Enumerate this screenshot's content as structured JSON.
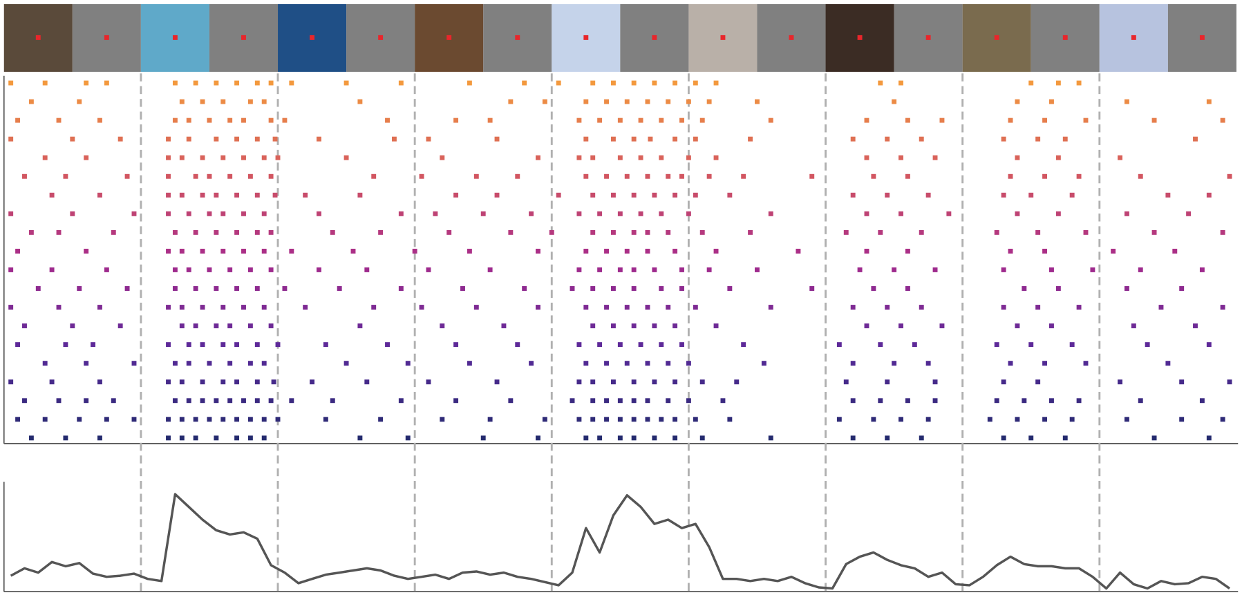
{
  "chart_data": [
    {
      "type": "raster",
      "xlim": [
        0,
        9
      ],
      "boundaries": [
        1,
        2,
        3,
        4,
        5,
        6,
        7,
        8
      ],
      "colormap": [
        "#f3993e",
        "#d4585f",
        "#a62a8c",
        "#5a2a9a",
        "#242a6e"
      ],
      "trials": [
        [
          0.05,
          0.3,
          0.6,
          0.75,
          1.25,
          1.4,
          1.55,
          1.7,
          1.85,
          1.95,
          2.1,
          2.5,
          2.9,
          3.4,
          3.8,
          4.05,
          4.3,
          4.45,
          4.6,
          4.75,
          4.9,
          5.05,
          5.2,
          6.4,
          6.55,
          7.5,
          7.7,
          7.85
        ],
        [
          0.2,
          0.55,
          1.3,
          1.45,
          1.6,
          1.8,
          1.9,
          2.6,
          3.7,
          3.95,
          4.25,
          4.4,
          4.55,
          4.7,
          4.85,
          5.0,
          5.15,
          5.5,
          6.5,
          7.4,
          7.65,
          8.2,
          8.8
        ],
        [
          0.1,
          0.4,
          0.7,
          1.25,
          1.35,
          1.5,
          1.65,
          1.75,
          1.95,
          2.05,
          2.8,
          3.3,
          3.55,
          4.2,
          4.35,
          4.5,
          4.65,
          4.8,
          4.95,
          5.1,
          5.6,
          6.3,
          6.6,
          6.85,
          7.35,
          7.6,
          7.9,
          8.4,
          8.9
        ],
        [
          0.05,
          0.5,
          0.85,
          1.2,
          1.35,
          1.55,
          1.7,
          1.85,
          1.98,
          2.3,
          2.85,
          3.1,
          3.6,
          4.25,
          4.45,
          4.6,
          4.72,
          4.9,
          5.05,
          5.45,
          6.2,
          6.45,
          6.7,
          7.3,
          7.55,
          7.75,
          8.7
        ],
        [
          0.3,
          0.6,
          1.2,
          1.3,
          1.45,
          1.6,
          1.75,
          1.9,
          2.0,
          2.5,
          3.2,
          3.9,
          4.2,
          4.3,
          4.5,
          4.65,
          4.8,
          5.0,
          5.2,
          6.3,
          6.55,
          6.8,
          7.4,
          7.7,
          8.15
        ],
        [
          0.15,
          0.45,
          0.9,
          1.2,
          1.4,
          1.5,
          1.65,
          1.8,
          1.95,
          2.7,
          3.05,
          3.45,
          3.75,
          4.25,
          4.4,
          4.55,
          4.7,
          4.85,
          4.95,
          5.15,
          5.4,
          5.9,
          6.35,
          6.6,
          7.35,
          7.6,
          7.85,
          8.3,
          8.95
        ],
        [
          0.35,
          0.7,
          1.2,
          1.3,
          1.45,
          1.55,
          1.7,
          1.85,
          1.98,
          2.2,
          2.6,
          3.3,
          3.6,
          4.05,
          4.3,
          4.45,
          4.6,
          4.75,
          4.9,
          5.05,
          5.3,
          6.2,
          6.45,
          6.75,
          7.3,
          7.5,
          7.8,
          8.5,
          8.8
        ],
        [
          0.05,
          0.5,
          0.95,
          1.2,
          1.35,
          1.5,
          1.6,
          1.75,
          1.9,
          2.3,
          2.9,
          3.15,
          3.5,
          3.85,
          4.2,
          4.35,
          4.5,
          4.65,
          4.8,
          5.0,
          5.6,
          6.3,
          6.55,
          6.9,
          7.4,
          7.7,
          8.2,
          8.65
        ],
        [
          0.2,
          0.4,
          0.8,
          1.25,
          1.4,
          1.55,
          1.7,
          1.85,
          1.95,
          2.4,
          2.75,
          3.25,
          3.7,
          4.0,
          4.3,
          4.45,
          4.6,
          4.7,
          4.85,
          5.1,
          5.45,
          6.15,
          6.4,
          6.7,
          7.25,
          7.55,
          7.9,
          8.4,
          8.9
        ],
        [
          0.1,
          0.6,
          1.2,
          1.3,
          1.45,
          1.6,
          1.75,
          1.9,
          2.1,
          2.55,
          3.0,
          3.4,
          3.9,
          4.25,
          4.4,
          4.55,
          4.7,
          4.9,
          5.2,
          5.8,
          6.3,
          6.6,
          7.35,
          7.6,
          8.1,
          8.55
        ],
        [
          0.05,
          0.35,
          0.75,
          1.25,
          1.35,
          1.5,
          1.65,
          1.8,
          1.95,
          2.3,
          2.65,
          3.1,
          3.55,
          4.2,
          4.35,
          4.5,
          4.6,
          4.75,
          4.95,
          5.15,
          5.5,
          6.25,
          6.5,
          6.8,
          7.3,
          7.65,
          7.95,
          8.3,
          8.75
        ],
        [
          0.25,
          0.55,
          0.9,
          1.25,
          1.4,
          1.55,
          1.7,
          1.85,
          2.05,
          2.45,
          2.9,
          3.35,
          3.8,
          4.15,
          4.3,
          4.45,
          4.6,
          4.8,
          4.95,
          5.3,
          5.9,
          6.35,
          6.6,
          7.45,
          7.7,
          8.2,
          8.6
        ],
        [
          0.05,
          0.4,
          0.7,
          1.2,
          1.3,
          1.45,
          1.6,
          1.75,
          1.9,
          2.2,
          2.7,
          3.05,
          3.45,
          3.9,
          4.25,
          4.4,
          4.55,
          4.7,
          4.85,
          5.05,
          5.6,
          6.2,
          6.45,
          6.7,
          7.3,
          7.55,
          7.85,
          8.45,
          8.9
        ],
        [
          0.15,
          0.5,
          0.85,
          1.3,
          1.4,
          1.55,
          1.65,
          1.8,
          1.95,
          2.6,
          3.2,
          3.65,
          4.3,
          4.45,
          4.6,
          4.75,
          4.9,
          5.2,
          6.3,
          6.55,
          6.85,
          7.4,
          7.65,
          8.25,
          8.7
        ],
        [
          0.1,
          0.45,
          0.65,
          1.2,
          1.35,
          1.45,
          1.6,
          1.7,
          1.85,
          2.0,
          2.35,
          2.8,
          3.3,
          3.75,
          4.2,
          4.35,
          4.5,
          4.65,
          4.8,
          4.95,
          5.4,
          6.1,
          6.4,
          6.65,
          7.25,
          7.5,
          7.8,
          8.35,
          8.8
        ],
        [
          0.3,
          0.6,
          0.95,
          1.25,
          1.35,
          1.5,
          1.65,
          1.8,
          1.9,
          2.5,
          2.95,
          3.4,
          3.85,
          4.25,
          4.4,
          4.55,
          4.7,
          4.85,
          5.0,
          5.55,
          6.2,
          6.5,
          6.75,
          7.35,
          7.6,
          7.9,
          8.5
        ],
        [
          0.05,
          0.35,
          0.7,
          1.2,
          1.3,
          1.45,
          1.6,
          1.7,
          1.85,
          1.97,
          2.25,
          2.65,
          3.1,
          3.6,
          4.2,
          4.3,
          4.45,
          4.6,
          4.75,
          4.9,
          5.1,
          5.35,
          6.15,
          6.45,
          6.8,
          7.3,
          7.55,
          8.15,
          8.6,
          8.95
        ],
        [
          0.15,
          0.4,
          0.6,
          0.8,
          1.25,
          1.35,
          1.45,
          1.55,
          1.65,
          1.75,
          1.85,
          1.95,
          2.1,
          2.4,
          2.9,
          3.3,
          3.7,
          4.15,
          4.3,
          4.4,
          4.5,
          4.6,
          4.7,
          4.85,
          5.0,
          5.25,
          6.2,
          6.4,
          6.6,
          6.8,
          7.25,
          7.45,
          7.65,
          7.85,
          8.3,
          8.75
        ],
        [
          0.1,
          0.3,
          0.55,
          0.75,
          0.95,
          1.2,
          1.3,
          1.4,
          1.5,
          1.6,
          1.7,
          1.8,
          1.9,
          2.0,
          2.35,
          2.75,
          3.2,
          3.55,
          3.95,
          4.2,
          4.3,
          4.4,
          4.5,
          4.6,
          4.7,
          4.8,
          4.9,
          5.05,
          5.3,
          6.1,
          6.35,
          6.55,
          6.75,
          7.2,
          7.4,
          7.6,
          7.8,
          8.2,
          8.6,
          8.9
        ],
        [
          0.2,
          0.45,
          0.7,
          1.2,
          1.3,
          1.4,
          1.55,
          1.7,
          1.8,
          1.9,
          2.6,
          2.95,
          3.5,
          3.9,
          4.25,
          4.35,
          4.5,
          4.6,
          4.75,
          4.9,
          5.1,
          5.6,
          6.2,
          6.45,
          6.7,
          7.3,
          7.5,
          7.75,
          8.4,
          8.8
        ]
      ]
    },
    {
      "type": "line",
      "xlim": [
        0,
        9
      ],
      "ylim": [
        0,
        100
      ],
      "color": "#555555",
      "x": [
        0.05,
        0.15,
        0.25,
        0.35,
        0.45,
        0.55,
        0.65,
        0.75,
        0.85,
        0.95,
        1.05,
        1.15,
        1.25,
        1.35,
        1.45,
        1.55,
        1.65,
        1.75,
        1.85,
        1.95,
        2.05,
        2.15,
        2.25,
        2.35,
        2.45,
        2.55,
        2.65,
        2.75,
        2.85,
        2.95,
        3.05,
        3.15,
        3.25,
        3.35,
        3.45,
        3.55,
        3.65,
        3.75,
        3.85,
        3.95,
        4.05,
        4.15,
        4.25,
        4.35,
        4.45,
        4.55,
        4.65,
        4.75,
        4.85,
        4.95,
        5.05,
        5.15,
        5.25,
        5.35,
        5.45,
        5.55,
        5.65,
        5.75,
        5.85,
        5.95,
        6.05,
        6.15,
        6.25,
        6.35,
        6.45,
        6.55,
        6.65,
        6.75,
        6.85,
        6.95,
        7.05,
        7.15,
        7.25,
        7.35,
        7.45,
        7.55,
        7.65,
        7.75,
        7.85,
        7.95,
        8.05,
        8.15,
        8.25,
        8.35,
        8.45,
        8.55,
        8.65,
        8.75,
        8.85,
        8.95
      ],
      "values": [
        15,
        22,
        18,
        28,
        24,
        27,
        17,
        14,
        15,
        17,
        12,
        10,
        92,
        80,
        68,
        58,
        54,
        56,
        50,
        25,
        18,
        8,
        12,
        16,
        18,
        20,
        22,
        20,
        15,
        12,
        14,
        16,
        12,
        18,
        19,
        16,
        18,
        14,
        12,
        9,
        6,
        18,
        60,
        37,
        72,
        91,
        80,
        64,
        68,
        60,
        64,
        42,
        12,
        12,
        10,
        12,
        10,
        14,
        8,
        4,
        3,
        26,
        33,
        37,
        30,
        25,
        22,
        14,
        18,
        7,
        6,
        14,
        25,
        33,
        26,
        24,
        24,
        22,
        22,
        14,
        3,
        18,
        7,
        3,
        10,
        7,
        8,
        14,
        12,
        3
      ]
    }
  ]
}
